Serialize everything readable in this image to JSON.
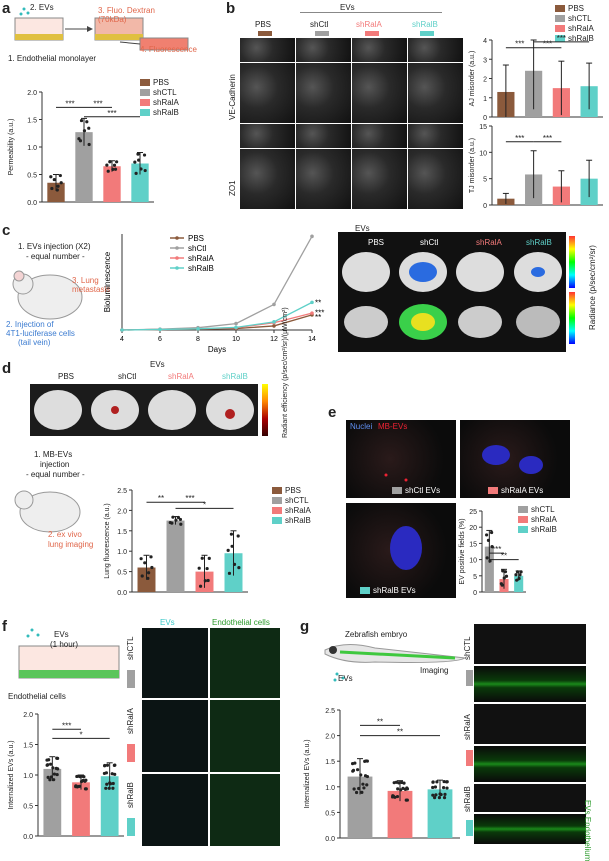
{
  "colors": {
    "pbs": "#8b5a3c",
    "shctl": "#a0a0a0",
    "shrala": "#f27a7a",
    "shralb": "#5fd0c8"
  },
  "panel_a": {
    "label": "a",
    "evs": "2. EVs",
    "dextran": "3. Fluo.\nDextran (70kDa)",
    "fluor": "4. Fluorescence",
    "mono": "1. Endothelial monolayer",
    "ylabel": "Permeability (a.u.)",
    "evs_tag": "EVs"
  },
  "panel_b": {
    "label": "b",
    "evs": "EVs",
    "cols": [
      "PBS",
      "shCtl",
      "shRalA",
      "shRalB"
    ],
    "row1": "VE-Cadherin",
    "row2": "ZO1",
    "aj_ylabel": "AJ misorder (a.u.)",
    "tj_ylabel": "TJ misorder (a.u.)",
    "evs_tag": "EVs"
  },
  "panel_c": {
    "label": "c",
    "step1": "1. EVs injection (X2)",
    "step1b": "- equal number -",
    "step2": "2. Injection of",
    "step2b": "4T1-luciferase cells",
    "step2c": "(tail vein)",
    "step3": "3. Lung",
    "step3b": "metastasis",
    "ylabel": "Bioluminescence",
    "xlabel": "Days",
    "evs_tag": "EVs",
    "imgs_evs": "EVs",
    "radiance": "Radiance (p/sec/cm²/sr)",
    "cols": [
      "PBS",
      "shCtl",
      "shRalA",
      "shRalB"
    ]
  },
  "panel_d": {
    "label": "d",
    "evs": "EVs",
    "cols": [
      "PBS",
      "shCtl",
      "shRalA",
      "shRalB"
    ],
    "radiant": "Radiant efficiency (p/sec/cm²/sr)/(µW/cm²)",
    "step1": "1. MB-EVs",
    "step1b": "injection",
    "step1c": "- equal number -",
    "step2": "2. ex vivo",
    "step2b": "lung imaging",
    "ylabel": "Lung fluorescence (a.u.)",
    "evs_tag": "EVs"
  },
  "panel_e": {
    "label": "e",
    "nuclei": "Nuclei",
    "mbevs": "MB-EVs",
    "c1": "shCtl EVs",
    "c2": "shRalA EVs",
    "c3": "shRalB EVs",
    "ylabel": "EV positive fields (%)",
    "evs_tag": "EVs"
  },
  "panel_f": {
    "label": "f",
    "evs": "EVs",
    "evs2": "(1 hour)",
    "cells": "Endothelial cells",
    "col1": "EVs",
    "col2": "Endothelial cells",
    "rows": [
      "shCTL",
      "shRalA",
      "shRalB"
    ],
    "ylabel": "Internalized EVs (a.u.)"
  },
  "panel_g": {
    "label": "g",
    "zebra": "Zebrafish embryo",
    "evs": "EVs",
    "imaging": "Imaging",
    "rows": [
      "shCTL",
      "shRalA",
      "shRalB"
    ],
    "side": "EVs Endothelium",
    "ylabel": "Internalized EVs (a.u.)"
  },
  "legend": {
    "pbs": "PBS",
    "shctl": "shCTL",
    "shrala": "shRalA",
    "shralb": "shRalB"
  },
  "sig": {
    "s3": "***",
    "s2": "**",
    "s1": "*"
  },
  "chart_data": [
    {
      "id": "a_permeability",
      "type": "bar",
      "categories": [
        "PBS",
        "shCTL",
        "shRalA",
        "shRalB"
      ],
      "values": [
        0.35,
        1.27,
        0.65,
        0.7
      ],
      "errors": [
        0.15,
        0.25,
        0.1,
        0.2
      ],
      "ylim": [
        0,
        2.0
      ],
      "yticks": [
        "0.0",
        "0.5",
        "1.0",
        "1.5",
        "2.0"
      ],
      "ylabel": "Permeability (a.u.)"
    },
    {
      "id": "b_aj",
      "type": "bar",
      "categories": [
        "PBS",
        "shCTL",
        "shRalA",
        "shRalB"
      ],
      "values": [
        1.3,
        2.4,
        1.5,
        1.6
      ],
      "errors": [
        1.4,
        2.0,
        1.4,
        1.2
      ],
      "ylim": [
        0,
        4
      ],
      "yticks": [
        "0",
        "1",
        "2",
        "3",
        "4"
      ],
      "ylabel": "AJ misorder (a.u.)"
    },
    {
      "id": "b_tj",
      "type": "bar",
      "categories": [
        "PBS",
        "shCTL",
        "shRalA",
        "shRalB"
      ],
      "values": [
        1.2,
        5.8,
        3.5,
        5.0
      ],
      "errors": [
        1.0,
        4.5,
        3.0,
        3.5
      ],
      "ylim": [
        0,
        15
      ],
      "yticks": [
        "0",
        "5",
        "10",
        "15"
      ],
      "ylabel": "TJ misorder (a.u.)"
    },
    {
      "id": "c_biolum",
      "type": "line",
      "x": [
        4,
        6,
        8,
        10,
        12,
        14
      ],
      "series": [
        {
          "name": "PBS",
          "values": [
            0,
            2,
            3,
            5,
            14,
            52
          ]
        },
        {
          "name": "shCtl",
          "values": [
            0,
            3,
            8,
            22,
            88,
            322
          ]
        },
        {
          "name": "shRalA",
          "values": [
            0,
            2,
            4,
            8,
            25,
            58
          ]
        },
        {
          "name": "shRalB",
          "values": [
            0,
            2,
            4,
            9,
            28,
            95
          ]
        }
      ],
      "xlabel": "Days",
      "ylabel": "Bioluminescence",
      "xlim": [
        4,
        14
      ]
    },
    {
      "id": "d_lungfluor",
      "type": "bar",
      "categories": [
        "PBS",
        "shCTL",
        "shRalA",
        "shRalB"
      ],
      "values": [
        0.6,
        1.75,
        0.5,
        0.95
      ],
      "errors": [
        0.3,
        0.1,
        0.4,
        0.55
      ],
      "ylim": [
        0,
        2.5
      ],
      "yticks": [
        "0.0",
        "0.5",
        "1.0",
        "1.5",
        "2.0",
        "2.5"
      ],
      "ylabel": "Lung fluorescence (a.u.)"
    },
    {
      "id": "e_evpos",
      "type": "bar",
      "categories": [
        "shCTL",
        "shRalA",
        "shRalB"
      ],
      "values": [
        14,
        4,
        5
      ],
      "errors": [
        5,
        3,
        1.5
      ],
      "ylim": [
        0,
        25
      ],
      "yticks": [
        "0",
        "5",
        "10",
        "15",
        "20",
        "25"
      ],
      "ylabel": "EV positive fields (%)"
    },
    {
      "id": "f_internal",
      "type": "bar",
      "categories": [
        "shCTL",
        "shRalA",
        "shRalB"
      ],
      "values": [
        1.1,
        0.88,
        0.98
      ],
      "errors": [
        0.2,
        0.12,
        0.22
      ],
      "ylim": [
        0,
        2.0
      ],
      "yticks": [
        "0.0",
        "0.5",
        "1.0",
        "1.5",
        "2.0"
      ],
      "ylabel": "Internalized EVs (a.u.)"
    },
    {
      "id": "g_internal",
      "type": "bar",
      "categories": [
        "shCTL",
        "shRalA",
        "shRalB"
      ],
      "values": [
        1.2,
        0.92,
        0.95
      ],
      "errors": [
        0.35,
        0.2,
        0.18
      ],
      "ylim": [
        0,
        2.5
      ],
      "yticks": [
        "0.0",
        "0.5",
        "1.0",
        "1.5",
        "2.0",
        "2.5"
      ],
      "ylabel": "Internalized EVs (a.u.)"
    }
  ]
}
